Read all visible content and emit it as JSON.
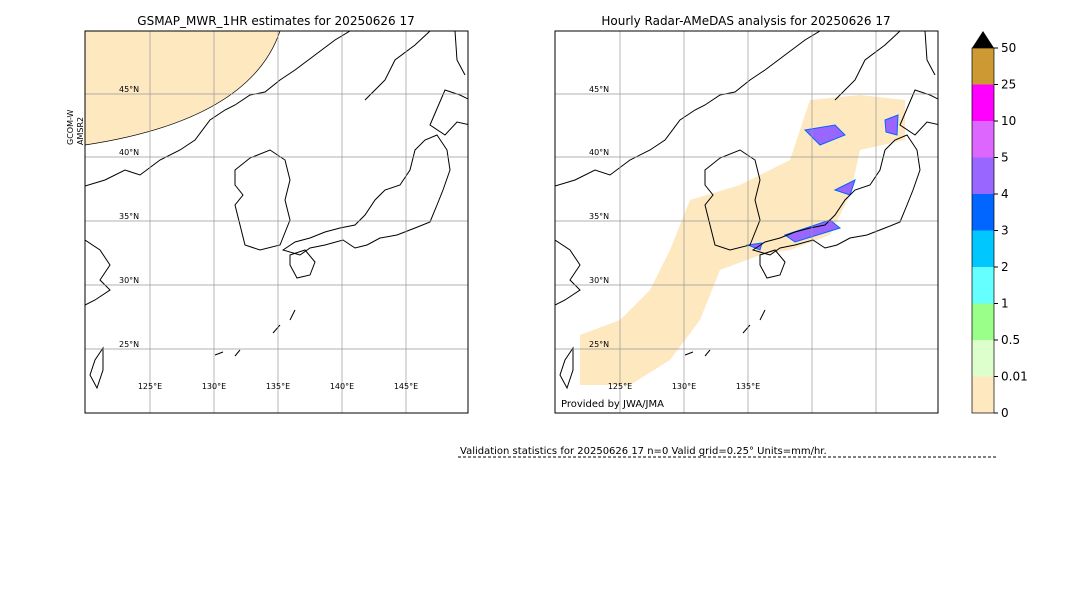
{
  "left_panel": {
    "title": "GSMAP_MWR_1HR estimates for 20250626 17",
    "sensor_label": [
      "GCOM-W",
      "AMSR2"
    ],
    "lat_labels": [
      "45°N",
      "40°N",
      "35°N",
      "30°N",
      "25°N"
    ],
    "lon_labels": [
      "125°E",
      "130°E",
      "135°E",
      "140°E",
      "145°E"
    ]
  },
  "right_panel": {
    "title": "Hourly Radar-AMeDAS analysis for 20250626 17",
    "lat_labels": [
      "45°N",
      "40°N",
      "35°N",
      "30°N",
      "25°N"
    ],
    "lon_labels": [
      "125°E",
      "130°E",
      "135°E"
    ],
    "credit": "Provided by JWA/JMA"
  },
  "colorbar": {
    "labels": [
      "50",
      "25",
      "10",
      "5",
      "4",
      "3",
      "2",
      "1",
      "0.5",
      "0.01",
      "0"
    ],
    "colors": [
      "#cc9933",
      "#ff00ff",
      "#dd66ff",
      "#9966ff",
      "#0066ff",
      "#00c8ff",
      "#66ffff",
      "#99ff88",
      "#ddffcc",
      "#fde8c0"
    ]
  },
  "footer": "Validation statistics for 20250626 17  n=0 Valid  grid=0.25° Units=mm/hr."
}
